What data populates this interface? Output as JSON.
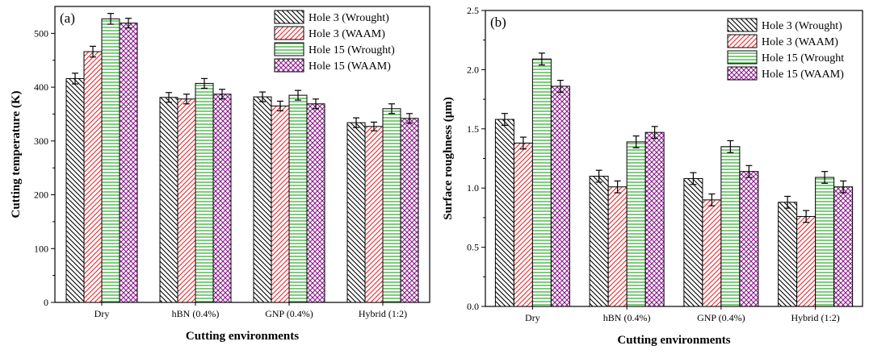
{
  "chart_data": [
    {
      "type": "bar",
      "panel_label": "(a)",
      "title": "",
      "xlabel": "Cutting environments",
      "ylabel": "Cutting temperature (K)",
      "categories": [
        "Dry",
        "hBN (0.4%)",
        "GNP (0.4%)",
        "Hybrid (1:2)"
      ],
      "ylim": [
        0,
        550
      ],
      "yticks": [
        0,
        100,
        200,
        300,
        400,
        500
      ],
      "series": [
        {
          "name": "Hole 3 (Wrought)",
          "values": [
            416,
            381,
            382,
            334
          ],
          "errors": [
            10,
            9,
            9,
            9
          ],
          "color": "#000000",
          "pattern": "diagonal-left"
        },
        {
          "name": "Hole 3 (WAAM)",
          "values": [
            466,
            378,
            365,
            327
          ],
          "errors": [
            10,
            9,
            9,
            8
          ],
          "color": "#e8262b",
          "pattern": "diagonal-right"
        },
        {
          "name": "Hole 15 (Wrought)",
          "values": [
            527,
            407,
            385,
            360
          ],
          "errors": [
            10,
            9,
            9,
            9
          ],
          "color": "#1a9e1a",
          "pattern": "horizontal"
        },
        {
          "name": "Hole 15 (WAAM)",
          "values": [
            519,
            387,
            369,
            342
          ],
          "errors": [
            9,
            9,
            9,
            9
          ],
          "color": "#8b1c8b",
          "pattern": "crosshatch"
        }
      ],
      "grid": false,
      "legend_position": "top-right"
    },
    {
      "type": "bar",
      "panel_label": "(b)",
      "title": "",
      "xlabel": "Cutting environments",
      "ylabel": "Surface roughness (μm)",
      "categories": [
        "Dry",
        "hBN (0.4%)",
        "GNP (0.4%)",
        "Hybrid (1:2)"
      ],
      "ylim": [
        0,
        2.5
      ],
      "yticks": [
        "0.0",
        "0.5",
        "1.0",
        "1.5",
        "2.0",
        "2.5"
      ],
      "series": [
        {
          "name": "Hole 3 (Wrought)",
          "values": [
            1.58,
            1.1,
            1.08,
            0.88
          ],
          "errors": [
            0.05,
            0.05,
            0.05,
            0.05
          ],
          "color": "#000000",
          "pattern": "diagonal-left"
        },
        {
          "name": "Hole 3 (WAAM)",
          "values": [
            1.38,
            1.01,
            0.9,
            0.76
          ],
          "errors": [
            0.05,
            0.05,
            0.05,
            0.05
          ],
          "color": "#e8262b",
          "pattern": "diagonal-right"
        },
        {
          "name": "Hole 15 (Wrought",
          "values": [
            2.09,
            1.39,
            1.35,
            1.09
          ],
          "errors": [
            0.05,
            0.05,
            0.05,
            0.05
          ],
          "color": "#1a9e1a",
          "pattern": "horizontal"
        },
        {
          "name": "Hole 15 (WAAM)",
          "values": [
            1.86,
            1.47,
            1.14,
            1.01
          ],
          "errors": [
            0.05,
            0.05,
            0.05,
            0.05
          ],
          "color": "#8b1c8b",
          "pattern": "crosshatch"
        }
      ],
      "grid": false,
      "legend_position": "top-right"
    }
  ]
}
